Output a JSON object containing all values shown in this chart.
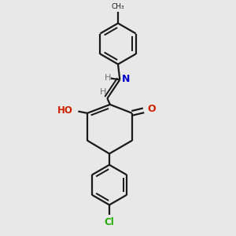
{
  "bg_color": "#e8e8e8",
  "bond_color": "#1a1a1a",
  "oxygen_color": "#cc2200",
  "nitrogen_color": "#0000cc",
  "chlorine_color": "#22aa00",
  "hydrogen_color": "#707070",
  "line_width": 1.6,
  "figsize": [
    3.0,
    3.0
  ],
  "dpi": 100,
  "xlim": [
    0,
    10
  ],
  "ylim": [
    0,
    10
  ]
}
